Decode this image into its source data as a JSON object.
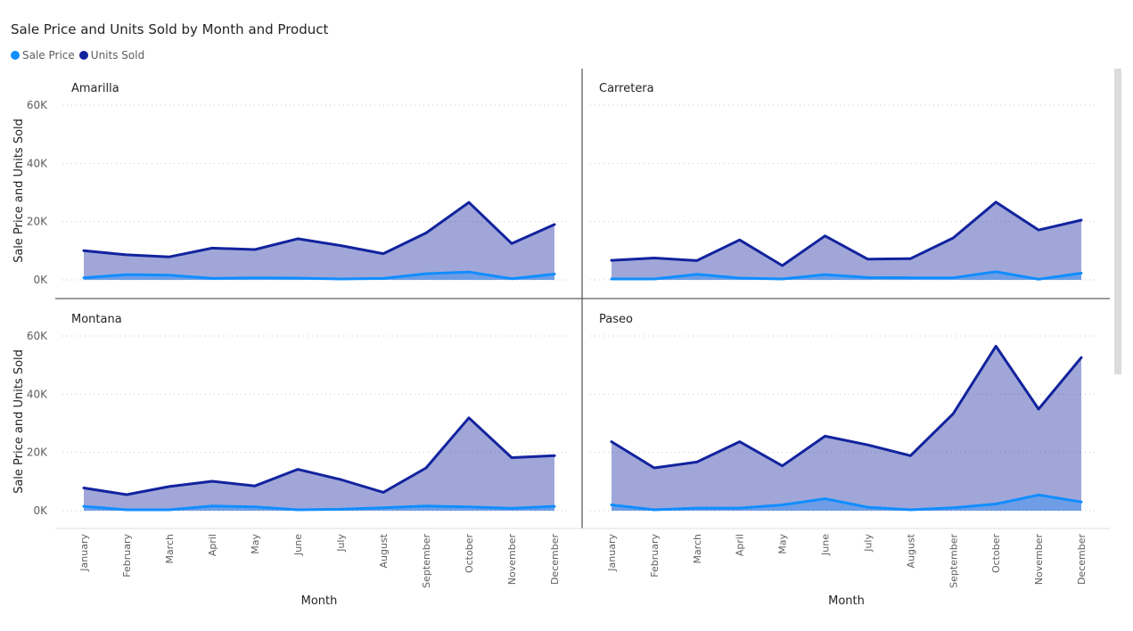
{
  "title": "Sale Price and Units Sold by Month and Product",
  "legend": [
    {
      "name": "Sale Price",
      "color": "#118dff"
    },
    {
      "name": "Units Sold",
      "color": "#12239e"
    }
  ],
  "chart_data": {
    "type": "area",
    "title": "Sale Price and Units Sold by Month and Product",
    "xlabel": "Month",
    "ylabel": "Sale Price and Units Sold",
    "ylim": [
      0,
      60000
    ],
    "yticks": [
      "0K",
      "20K",
      "40K",
      "60K"
    ],
    "grid": true,
    "legend_position": "top-left",
    "categories": [
      "January",
      "February",
      "March",
      "April",
      "May",
      "June",
      "July",
      "August",
      "September",
      "October",
      "November",
      "December"
    ],
    "panels": [
      {
        "name": "Amarilla",
        "series": [
          {
            "name": "Units Sold",
            "values": [
              10000,
              8600,
              7900,
              10900,
              10400,
              14100,
              11800,
              9000,
              16100,
              26600,
              12500,
              19000
            ]
          },
          {
            "name": "Sale Price",
            "values": [
              700,
              1800,
              1600,
              500,
              700,
              600,
              300,
              500,
              2100,
              2700,
              400,
              2000
            ]
          }
        ]
      },
      {
        "name": "Carretera",
        "series": [
          {
            "name": "Units Sold",
            "values": [
              6700,
              7500,
              6600,
              13700,
              4900,
              15100,
              7100,
              7300,
              14400,
              26700,
              17100,
              20500
            ]
          },
          {
            "name": "Sale Price",
            "values": [
              300,
              300,
              1900,
              600,
              300,
              1800,
              800,
              700,
              700,
              2800,
              200,
              2300
            ]
          }
        ]
      },
      {
        "name": "Montana",
        "series": [
          {
            "name": "Units Sold",
            "values": [
              7800,
              5500,
              8300,
              10100,
              8500,
              14200,
              10700,
              6300,
              14700,
              31900,
              18200,
              18900
            ]
          },
          {
            "name": "Sale Price",
            "values": [
              1500,
              300,
              300,
              1600,
              1300,
              300,
              500,
              1000,
              1600,
              1300,
              800,
              1500
            ]
          }
        ]
      },
      {
        "name": "Paseo",
        "series": [
          {
            "name": "Units Sold",
            "values": [
              23700,
              14700,
              16700,
              23700,
              15400,
              25600,
              22600,
              18900,
              33300,
              56500,
              34900,
              52600
            ]
          },
          {
            "name": "Sale Price",
            "values": [
              2000,
              300,
              900,
              900,
              2000,
              4100,
              1200,
              300,
              1000,
              2300,
              5400,
              3000
            ]
          }
        ]
      }
    ]
  }
}
